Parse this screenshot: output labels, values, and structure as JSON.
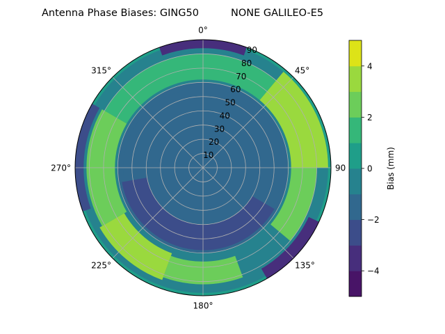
{
  "chart_data": {
    "type": "heatmap",
    "projection": "polar",
    "title": "Antenna Phase Biases: GING50          NONE GALILEO-E5",
    "colorbar_label": "Bias (mm)",
    "colormap": "viridis",
    "color_range": [
      -5,
      5
    ],
    "contour_levels": [
      -5,
      -4,
      -3,
      -2,
      -1,
      0,
      1,
      2,
      3,
      4,
      5
    ],
    "colorbar_ticks": [
      -4,
      -2,
      0,
      2,
      4
    ],
    "colorbar_tick_labels": [
      "−4",
      "−2",
      "0",
      "2",
      "4"
    ],
    "azimuth_ticks": [
      0,
      45,
      90,
      135,
      180,
      225,
      270,
      315
    ],
    "azimuth_tick_labels": [
      "0°",
      "45°",
      "90",
      "135°",
      "180°",
      "225°",
      "270°",
      "315°"
    ],
    "radial_ticks": [
      10,
      20,
      30,
      40,
      50,
      60,
      70,
      80,
      90
    ],
    "radial_tick_labels": [
      "10",
      "20",
      "30",
      "40",
      "50",
      "60",
      "70",
      "80",
      "90"
    ],
    "radial_range": [
      0,
      90
    ],
    "theta_zero_location": "N",
    "theta_direction": "clockwise",
    "grid": true,
    "regions": [
      {
        "desc": "center disc",
        "az_range": [
          0,
          360
        ],
        "r_range": [
          0,
          60
        ],
        "value": -1.5
      },
      {
        "desc": "north outer dip",
        "az_range": [
          340,
          20
        ],
        "r_range": [
          84,
          90
        ],
        "value": -3.5
      },
      {
        "desc": "north band",
        "az_range": [
          300,
          40
        ],
        "r_range": [
          62,
          80
        ],
        "value": 1.5
      },
      {
        "desc": "NE high band",
        "az_range": [
          40,
          90
        ],
        "r_range": [
          62,
          88
        ],
        "value": 3.5
      },
      {
        "desc": "east green band",
        "az_range": [
          90,
          130
        ],
        "r_range": [
          62,
          80
        ],
        "value": 2.5
      },
      {
        "desc": "SE outer dip",
        "az_range": [
          115,
          150
        ],
        "r_range": [
          82,
          90
        ],
        "value": -3.5
      },
      {
        "desc": "south band",
        "az_range": [
          160,
          200
        ],
        "r_range": [
          66,
          82
        ],
        "value": 2.5
      },
      {
        "desc": "SW high band",
        "az_range": [
          200,
          240
        ],
        "r_range": [
          64,
          84
        ],
        "value": 3.5
      },
      {
        "desc": "west band",
        "az_range": [
          240,
          300
        ],
        "r_range": [
          62,
          82
        ],
        "value": 2.5
      },
      {
        "desc": "west outer dip",
        "az_range": [
          250,
          300
        ],
        "r_range": [
          84,
          90
        ],
        "value": -2.5
      }
    ]
  }
}
